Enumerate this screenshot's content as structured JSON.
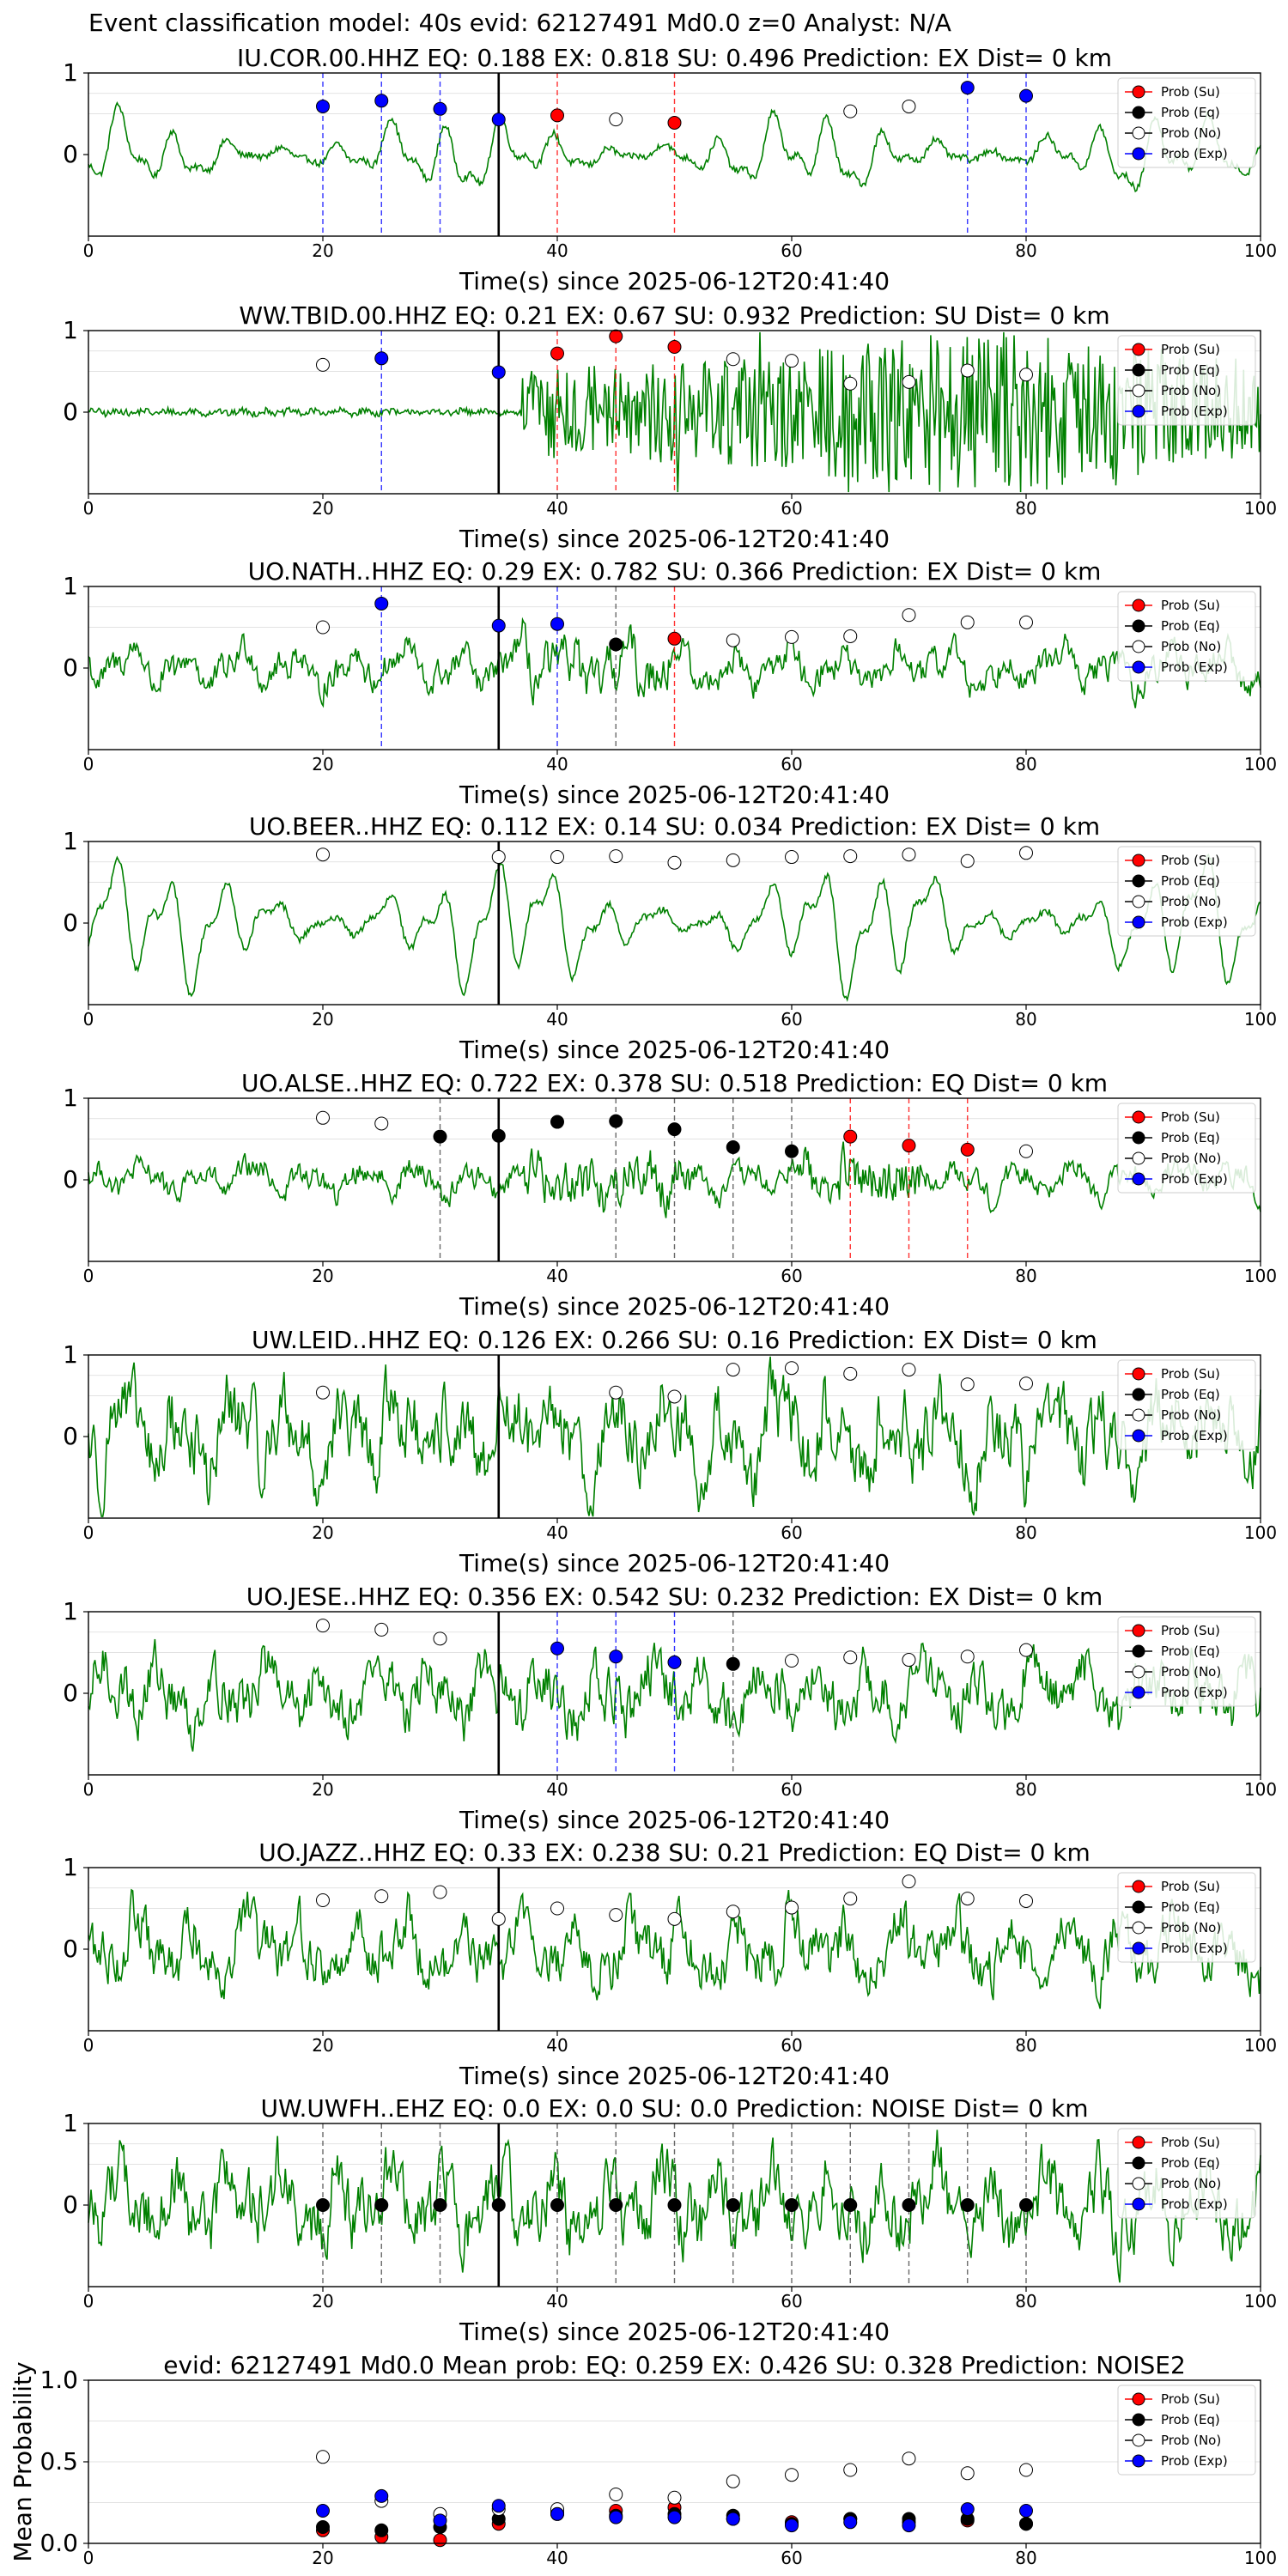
{
  "suptitle": "Event classification model: 40s evid: 62127491 Md0.0 z=0 Analyst: N/A",
  "xlabel": "Time(s) since 2025-06-12T20:41:40",
  "legend_labels": [
    "Prob (Su)",
    "Prob (Eq)",
    "Prob (No)",
    "Prob (Exp)"
  ],
  "colors": {
    "su": "#ff0000",
    "eq": "#000000",
    "no": "#ffffff",
    "exp": "#0000ff",
    "trace": "#008000",
    "grid": "#d9d9d9"
  },
  "x_ticks": [
    0,
    20,
    40,
    60,
    80,
    100
  ],
  "station_y_ticks": [
    1,
    0
  ],
  "chart_data": [
    {
      "type": "scatter",
      "station": "IU.COR.00.HHZ",
      "title": "IU.COR.00.HHZ   EQ: 0.188  EX: 0.818  SU: 0.496   Prediction: EX    Dist= 0 km",
      "xlim": [
        0,
        100
      ],
      "ylim": [
        -1,
        1
      ],
      "origin_time": 35,
      "trace": {
        "amp": 0.45,
        "style": "smooth",
        "event_at": 35
      },
      "points": [
        [
          20,
          0.59,
          "exp"
        ],
        [
          25,
          0.66,
          "exp"
        ],
        [
          30,
          0.56,
          "exp"
        ],
        [
          35,
          0.43,
          "exp"
        ],
        [
          40,
          0.48,
          "su"
        ],
        [
          45,
          0.43,
          "no"
        ],
        [
          50,
          0.39,
          "su"
        ],
        [
          65,
          0.53,
          "no"
        ],
        [
          70,
          0.59,
          "no"
        ],
        [
          75,
          0.82,
          "exp"
        ],
        [
          80,
          0.72,
          "exp"
        ]
      ],
      "vlines": [
        [
          20,
          "exp"
        ],
        [
          25,
          "exp"
        ],
        [
          30,
          "exp"
        ],
        [
          40,
          "su"
        ],
        [
          50,
          "su"
        ],
        [
          75,
          "exp"
        ],
        [
          80,
          "exp"
        ]
      ]
    },
    {
      "type": "scatter",
      "station": "WW.TBID.00.HHZ",
      "title": "WW.TBID.00.HHZ   EQ: 0.21  EX: 0.67  SU: 0.932   Prediction: SU    Dist= 0 km",
      "xlim": [
        0,
        100
      ],
      "ylim": [
        -1,
        1
      ],
      "origin_time": 35,
      "trace": {
        "amp": 0.9,
        "style": "burst",
        "event_at": 37
      },
      "points": [
        [
          20,
          0.58,
          "no"
        ],
        [
          25,
          0.66,
          "exp"
        ],
        [
          35,
          0.49,
          "exp"
        ],
        [
          40,
          0.72,
          "su"
        ],
        [
          45,
          0.93,
          "su"
        ],
        [
          50,
          0.8,
          "su"
        ],
        [
          55,
          0.65,
          "no"
        ],
        [
          60,
          0.63,
          "no"
        ],
        [
          65,
          0.35,
          "no"
        ],
        [
          70,
          0.37,
          "no"
        ],
        [
          75,
          0.51,
          "no"
        ],
        [
          80,
          0.46,
          "no"
        ]
      ],
      "vlines": [
        [
          25,
          "exp"
        ],
        [
          40,
          "su"
        ],
        [
          45,
          "su"
        ],
        [
          50,
          "su"
        ]
      ]
    },
    {
      "type": "scatter",
      "station": "UO.NATH..HHZ",
      "title": "UO.NATH..HHZ   EQ: 0.29  EX: 0.782  SU: 0.366   Prediction: EX    Dist= 0 km",
      "xlim": [
        0,
        100
      ],
      "ylim": [
        -1,
        1
      ],
      "origin_time": 35,
      "trace": {
        "amp": 0.5,
        "style": "event",
        "event_at": 37
      },
      "points": [
        [
          20,
          0.5,
          "no"
        ],
        [
          25,
          0.79,
          "exp"
        ],
        [
          35,
          0.52,
          "exp"
        ],
        [
          40,
          0.54,
          "exp"
        ],
        [
          45,
          0.29,
          "eq"
        ],
        [
          50,
          0.36,
          "su"
        ],
        [
          55,
          0.34,
          "no"
        ],
        [
          60,
          0.38,
          "no"
        ],
        [
          65,
          0.39,
          "no"
        ],
        [
          70,
          0.65,
          "no"
        ],
        [
          75,
          0.56,
          "no"
        ],
        [
          80,
          0.56,
          "no"
        ]
      ],
      "vlines": [
        [
          25,
          "exp"
        ],
        [
          40,
          "exp"
        ],
        [
          45,
          "eq"
        ],
        [
          50,
          "su"
        ]
      ]
    },
    {
      "type": "scatter",
      "station": "UO.BEER..HHZ",
      "title": "UO.BEER..HHZ   EQ: 0.112  EX: 0.14  SU: 0.034   Prediction: EX    Dist= 0 km",
      "xlim": [
        0,
        100
      ],
      "ylim": [
        -1,
        1
      ],
      "origin_time": 35,
      "trace": {
        "amp": 0.75,
        "style": "smooth",
        "event_at": 35
      },
      "points": [
        [
          20,
          0.84,
          "no"
        ],
        [
          35,
          0.81,
          "no"
        ],
        [
          40,
          0.81,
          "no"
        ],
        [
          45,
          0.82,
          "no"
        ],
        [
          50,
          0.74,
          "no"
        ],
        [
          55,
          0.77,
          "no"
        ],
        [
          60,
          0.81,
          "no"
        ],
        [
          65,
          0.82,
          "no"
        ],
        [
          70,
          0.84,
          "no"
        ],
        [
          75,
          0.76,
          "no"
        ],
        [
          80,
          0.86,
          "no"
        ]
      ],
      "vlines": []
    },
    {
      "type": "scatter",
      "station": "UO.ALSE..HHZ",
      "title": "UO.ALSE..HHZ   EQ: 0.722  EX: 0.378  SU: 0.518   Prediction: EQ    Dist= 0 km",
      "xlim": [
        0,
        100
      ],
      "ylim": [
        -1,
        1
      ],
      "origin_time": 35,
      "trace": {
        "amp": 0.4,
        "style": "double",
        "event_at": 37
      },
      "points": [
        [
          20,
          0.76,
          "no"
        ],
        [
          25,
          0.69,
          "no"
        ],
        [
          30,
          0.53,
          "eq"
        ],
        [
          35,
          0.54,
          "eq"
        ],
        [
          40,
          0.71,
          "eq"
        ],
        [
          45,
          0.72,
          "eq"
        ],
        [
          50,
          0.62,
          "eq"
        ],
        [
          55,
          0.4,
          "eq"
        ],
        [
          60,
          0.35,
          "eq"
        ],
        [
          65,
          0.53,
          "su"
        ],
        [
          70,
          0.42,
          "su"
        ],
        [
          75,
          0.37,
          "su"
        ],
        [
          80,
          0.35,
          "no"
        ]
      ],
      "vlines": [
        [
          30,
          "eq"
        ],
        [
          45,
          "eq"
        ],
        [
          50,
          "eq"
        ],
        [
          55,
          "eq"
        ],
        [
          60,
          "eq"
        ],
        [
          65,
          "su"
        ],
        [
          70,
          "su"
        ],
        [
          75,
          "su"
        ]
      ]
    },
    {
      "type": "scatter",
      "station": "UW.LEID..HHZ",
      "title": "UW.LEID..HHZ   EQ: 0.126  EX: 0.266  SU: 0.16   Prediction: EX    Dist= 0 km",
      "xlim": [
        0,
        100
      ],
      "ylim": [
        -1,
        1
      ],
      "origin_time": 35,
      "trace": {
        "amp": 0.8,
        "style": "noisy",
        "event_at": 35
      },
      "points": [
        [
          20,
          0.54,
          "no"
        ],
        [
          45,
          0.54,
          "no"
        ],
        [
          50,
          0.49,
          "no"
        ],
        [
          55,
          0.82,
          "no"
        ],
        [
          60,
          0.84,
          "no"
        ],
        [
          65,
          0.77,
          "no"
        ],
        [
          70,
          0.82,
          "no"
        ],
        [
          75,
          0.64,
          "no"
        ],
        [
          80,
          0.65,
          "no"
        ]
      ],
      "vlines": []
    },
    {
      "type": "scatter",
      "station": "UO.JESE..HHZ",
      "title": "UO.JESE..HHZ   EQ: 0.356  EX: 0.542  SU: 0.232   Prediction: EX    Dist= 0 km",
      "xlim": [
        0,
        100
      ],
      "ylim": [
        -1,
        1
      ],
      "origin_time": 35,
      "trace": {
        "amp": 0.6,
        "style": "noisy",
        "event_at": 35
      },
      "points": [
        [
          20,
          0.83,
          "no"
        ],
        [
          25,
          0.78,
          "no"
        ],
        [
          30,
          0.67,
          "no"
        ],
        [
          40,
          0.55,
          "exp"
        ],
        [
          45,
          0.45,
          "exp"
        ],
        [
          50,
          0.38,
          "exp"
        ],
        [
          55,
          0.36,
          "eq"
        ],
        [
          60,
          0.4,
          "no"
        ],
        [
          65,
          0.44,
          "no"
        ],
        [
          70,
          0.41,
          "no"
        ],
        [
          75,
          0.45,
          "no"
        ],
        [
          80,
          0.53,
          "no"
        ]
      ],
      "vlines": [
        [
          40,
          "exp"
        ],
        [
          45,
          "exp"
        ],
        [
          50,
          "exp"
        ],
        [
          55,
          "eq"
        ]
      ]
    },
    {
      "type": "scatter",
      "station": "UO.JAZZ..HHZ",
      "title": "UO.JAZZ..HHZ   EQ: 0.33  EX: 0.238  SU: 0.21   Prediction: EQ    Dist= 0 km",
      "xlim": [
        0,
        100
      ],
      "ylim": [
        -1,
        1
      ],
      "origin_time": 35,
      "trace": {
        "amp": 0.6,
        "style": "noisy",
        "event_at": 35
      },
      "points": [
        [
          20,
          0.6,
          "no"
        ],
        [
          25,
          0.65,
          "no"
        ],
        [
          30,
          0.7,
          "no"
        ],
        [
          35,
          0.37,
          "no"
        ],
        [
          40,
          0.5,
          "no"
        ],
        [
          45,
          0.42,
          "no"
        ],
        [
          50,
          0.37,
          "no"
        ],
        [
          55,
          0.46,
          "no"
        ],
        [
          60,
          0.51,
          "no"
        ],
        [
          65,
          0.62,
          "no"
        ],
        [
          70,
          0.83,
          "no"
        ],
        [
          75,
          0.62,
          "no"
        ],
        [
          80,
          0.59,
          "no"
        ]
      ],
      "vlines": []
    },
    {
      "type": "scatter",
      "station": "UW.UWFH..EHZ",
      "title": "UW.UWFH..EHZ   EQ: 0.0  EX: 0.0  SU: 0.0   Prediction: NOISE    Dist= 0 km",
      "xlim": [
        0,
        100
      ],
      "ylim": [
        -1,
        1
      ],
      "origin_time": 35,
      "trace": {
        "amp": 0.75,
        "style": "noisy",
        "event_at": 35
      },
      "points": [
        [
          20,
          0.0,
          "eq"
        ],
        [
          25,
          0.0,
          "eq"
        ],
        [
          30,
          0.0,
          "eq"
        ],
        [
          35,
          0.0,
          "eq"
        ],
        [
          40,
          0.0,
          "eq"
        ],
        [
          45,
          0.0,
          "eq"
        ],
        [
          50,
          0.0,
          "eq"
        ],
        [
          55,
          0.0,
          "eq"
        ],
        [
          60,
          0.0,
          "eq"
        ],
        [
          65,
          0.0,
          "eq"
        ],
        [
          70,
          0.0,
          "eq"
        ],
        [
          75,
          0.0,
          "eq"
        ],
        [
          80,
          0.0,
          "eq"
        ]
      ],
      "vlines": [
        [
          20,
          "eq"
        ],
        [
          25,
          "eq"
        ],
        [
          30,
          "eq"
        ],
        [
          40,
          "eq"
        ],
        [
          45,
          "eq"
        ],
        [
          50,
          "eq"
        ],
        [
          55,
          "eq"
        ],
        [
          60,
          "eq"
        ],
        [
          65,
          "eq"
        ],
        [
          70,
          "eq"
        ],
        [
          75,
          "eq"
        ],
        [
          80,
          "eq"
        ]
      ]
    },
    {
      "type": "scatter",
      "station": "mean",
      "title": "evid: 62127491  Md0.0   Mean prob:    EQ: 0.259  EX: 0.426  SU: 0.328   Prediction: NOISE2",
      "ylabel": "Mean Probability",
      "xlim": [
        0,
        100
      ],
      "ylim": [
        0,
        1
      ],
      "y_ticks": [
        "0.0",
        "0.5",
        "1.0"
      ],
      "series": [
        {
          "name": "Prob (Su)",
          "key": "su",
          "x": [
            20,
            25,
            30,
            35,
            40,
            45,
            50,
            55,
            60,
            65,
            70,
            75,
            80
          ],
          "y": [
            0.08,
            0.04,
            0.02,
            0.12,
            0.19,
            0.2,
            0.22,
            0.15,
            0.13,
            0.15,
            0.13,
            0.14,
            0.12
          ]
        },
        {
          "name": "Prob (Eq)",
          "key": "eq",
          "x": [
            20,
            25,
            30,
            35,
            40,
            45,
            50,
            55,
            60,
            65,
            70,
            75,
            80
          ],
          "y": [
            0.1,
            0.08,
            0.1,
            0.15,
            0.18,
            0.17,
            0.18,
            0.17,
            0.12,
            0.15,
            0.15,
            0.15,
            0.12
          ]
        },
        {
          "name": "Prob (No)",
          "key": "no",
          "x": [
            20,
            25,
            30,
            35,
            40,
            45,
            50,
            55,
            60,
            65,
            70,
            75,
            80
          ],
          "y": [
            0.53,
            0.26,
            0.18,
            0.21,
            0.21,
            0.3,
            0.28,
            0.38,
            0.42,
            0.45,
            0.52,
            0.43,
            0.45
          ]
        },
        {
          "name": "Prob (Exp)",
          "key": "exp",
          "x": [
            20,
            25,
            30,
            35,
            40,
            45,
            50,
            55,
            60,
            65,
            70,
            75,
            80
          ],
          "y": [
            0.2,
            0.29,
            0.14,
            0.23,
            0.18,
            0.16,
            0.16,
            0.15,
            0.11,
            0.13,
            0.11,
            0.21,
            0.2
          ]
        }
      ]
    }
  ]
}
